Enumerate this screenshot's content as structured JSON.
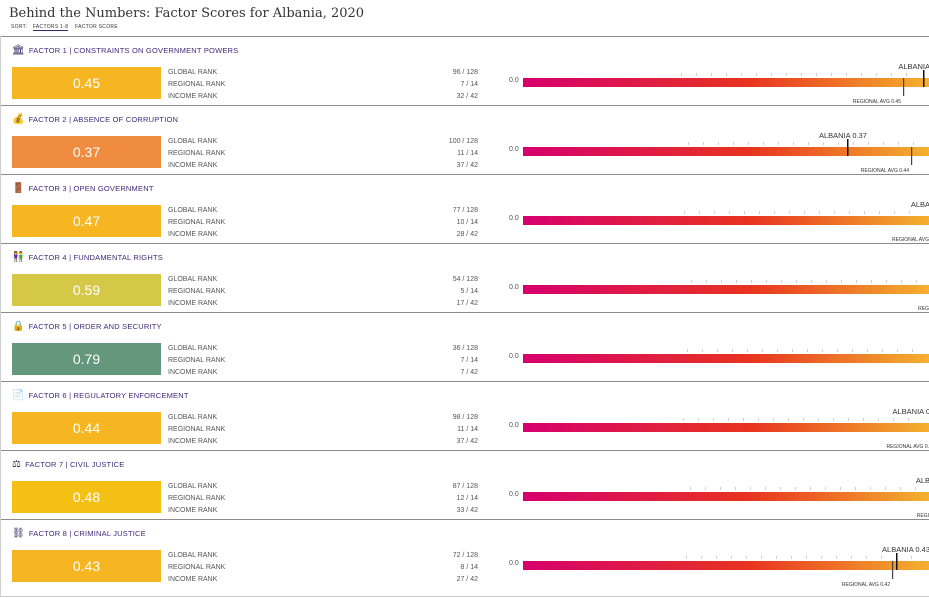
{
  "page": {
    "title": "Behind the Numbers: Factor Scores for Albania, 2020"
  },
  "sort": {
    "label": "SORT:",
    "options": [
      "FACTORS 1-8",
      "FACTOR SCORE"
    ],
    "active": 0
  },
  "rank_labels": [
    "GLOBAL RANK",
    "REGIONAL RANK",
    "INCOME RANK"
  ],
  "axis_zero": "0.0",
  "colors": {
    "heading": "#3d2b7a",
    "bar_start": "#d6006e",
    "bar_mid": "#e8331f",
    "bar_end": "#f4b330"
  },
  "factors": [
    {
      "icon": "building-icon",
      "glyph": "🏛",
      "heading": "FACTOR 1 | CONSTRAINTS ON GOVERNMENT POWERS",
      "score": "0.45",
      "color": "#f5b621",
      "global": "96 / 128",
      "regional": "7 / 14",
      "income": "32 / 42",
      "marker": "ALBANIA",
      "regional_avg": "REGIONAL AVG 0.45"
    },
    {
      "icon": "money-bag-icon",
      "glyph": "💰",
      "heading": "FACTOR 2 | ABSENCE OF CORRUPTION",
      "score": "0.37",
      "color": "#ef8c40",
      "global": "100 / 128",
      "regional": "11 / 14",
      "income": "37 / 42",
      "marker": "ALBANIA 0.37",
      "regional_avg": "REGIONAL AVG 0.44"
    },
    {
      "icon": "door-icon",
      "glyph": "🚪",
      "heading": "FACTOR 3 | OPEN GOVERNMENT",
      "score": "0.47",
      "color": "#f5b621",
      "global": "77 / 128",
      "regional": "10 / 14",
      "income": "28 / 42",
      "marker": "ALBA",
      "regional_avg": "REGIONAL AVG"
    },
    {
      "icon": "people-icon",
      "glyph": "👫",
      "heading": "FACTOR 4 | FUNDAMENTAL RIGHTS",
      "score": "0.59",
      "color": "#d6c847",
      "global": "54 / 128",
      "regional": "5 / 14",
      "income": "17 / 42",
      "marker": "",
      "regional_avg": "REG"
    },
    {
      "icon": "lock-icon",
      "glyph": "🔒",
      "heading": "FACTOR 5 | ORDER AND SECURITY",
      "score": "0.79",
      "color": "#65977d",
      "global": "36 / 128",
      "regional": "7 / 14",
      "income": "7 / 42",
      "marker": "",
      "regional_avg": ""
    },
    {
      "icon": "document-icon",
      "glyph": "📄",
      "heading": "FACTOR 6 | REGULATORY ENFORCEMENT",
      "score": "0.44",
      "color": "#f5b621",
      "global": "98 / 128",
      "regional": "11 / 14",
      "income": "37 / 42",
      "marker": "ALBANIA 0",
      "regional_avg": "REGIONAL AVG 0."
    },
    {
      "icon": "scales-icon",
      "glyph": "⚖",
      "heading": "FACTOR 7 | CIVIL JUSTICE",
      "score": "0.48",
      "color": "#f5c014",
      "global": "87 / 128",
      "regional": "12 / 14",
      "income": "33 / 42",
      "marker": "ALB",
      "regional_avg": "REGI"
    },
    {
      "icon": "handcuffs-icon",
      "glyph": "⛓",
      "heading": "FACTOR 8 | CRIMINAL JUSTICE",
      "score": "0.43",
      "color": "#f5b621",
      "global": "72 / 128",
      "regional": "8 / 14",
      "income": "27 / 42",
      "marker": "ALBANIA 0.43",
      "regional_avg": "REGIONAL AVG 0.42"
    }
  ]
}
